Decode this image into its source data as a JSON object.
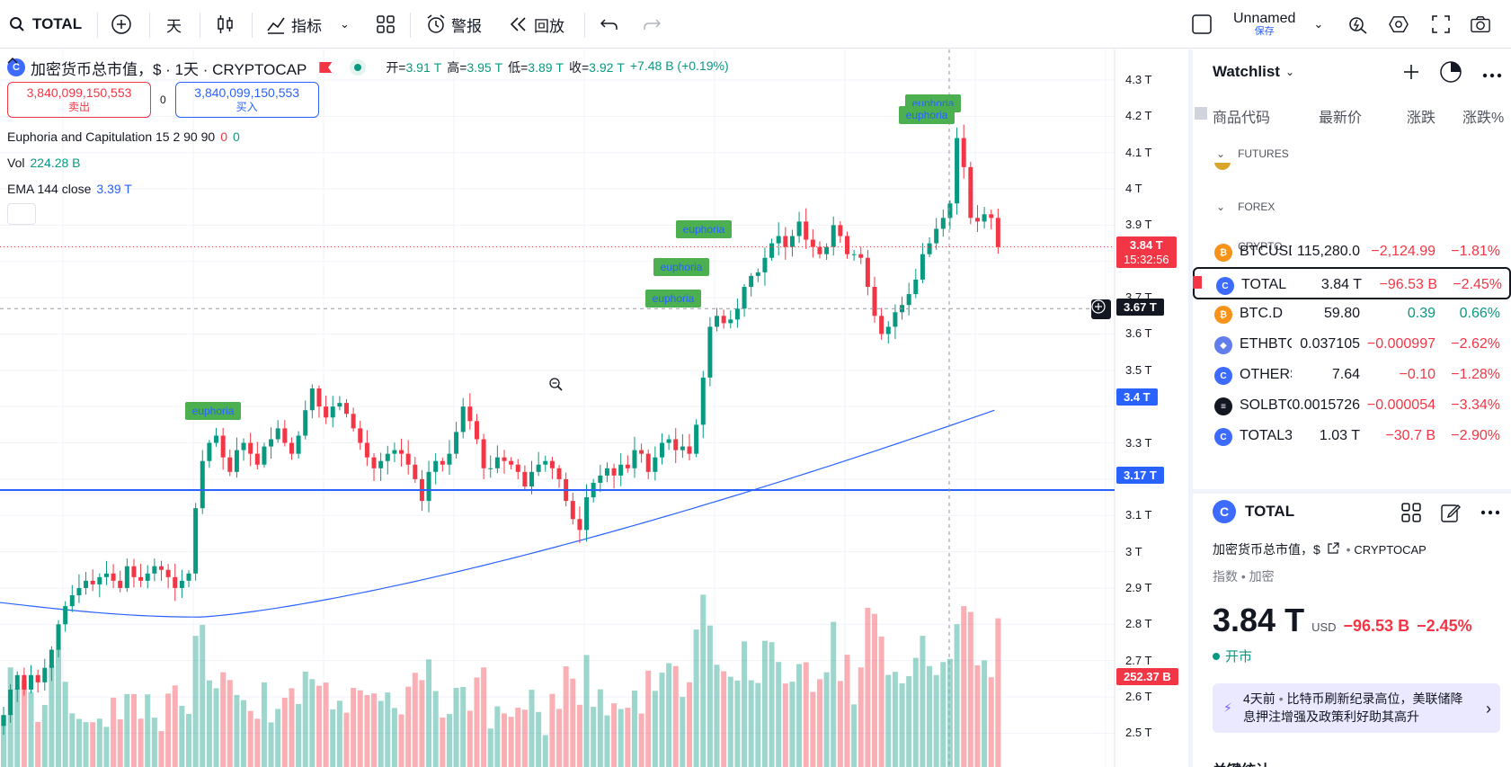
{
  "toolbar": {
    "symbol": "TOTAL",
    "interval": "天",
    "indicators_label": "指标",
    "alert_label": "警报",
    "replay_label": "回放",
    "layout_name": "Unnamed",
    "layout_saved": "保存"
  },
  "legend": {
    "title": "加密货币总市值，$ · 1天 · CRYPTOCAP",
    "open_label": "开=",
    "open": "3.91 T",
    "high_label": "高=",
    "high": "3.95 T",
    "low_label": "低=",
    "low": "3.89 T",
    "close_label": "收=",
    "close": "3.92 T",
    "change": "+7.48 B (+0.19%)",
    "sell_price": "3,840,099,150,553",
    "sell_label": "卖出",
    "spread": "0",
    "buy_price": "3,840,099,150,553",
    "buy_label": "买入",
    "ind1_name": "Euphoria and Capitulation 15 2 90 90",
    "ind1_v1": "0",
    "ind1_v2": "0",
    "vol_name": "Vol",
    "vol_value": "224.28 B",
    "ema_name": "EMA 144 close",
    "ema_value": "3.39 T"
  },
  "price_axis": {
    "labels": [
      "4.3 T",
      "4.2 T",
      "4.1 T",
      "4 T",
      "3.9 T",
      "3.7 T",
      "3.6 T",
      "3.5 T",
      "3.3 T",
      "3.2 T",
      "3.1 T",
      "3 T",
      "2.9 T",
      "2.8 T",
      "2.7 T",
      "2.6 T",
      "2.5 T"
    ],
    "last_price": "3.84 T",
    "countdown": "15:32:56",
    "crosshair_price": "3.67 T",
    "ema_price": "3.4 T",
    "hline_price": "3.17 T",
    "volume_last": "252.37 B"
  },
  "chart_labels": {
    "euphoria": "euphoria"
  },
  "colors": {
    "up": "#089981",
    "down": "#f23645",
    "accent": "#2962ff",
    "label_bg": "#4caf50"
  },
  "watchlist": {
    "title": "Watchlist",
    "col_symbol": "商品代码",
    "col_last": "最新价",
    "col_change": "涨跌",
    "col_pct": "涨跌%",
    "cat_futures": "FUTURES",
    "cat_forex": "FOREX",
    "cat_crypto": "CRYPTO",
    "rows": [
      {
        "symbol": "BTCUSD",
        "last": "115,280.0",
        "change": "−2,124.99",
        "pct": "−1.81%",
        "dir": "neg",
        "logo": "#f7931a",
        "glyph": "₿"
      },
      {
        "symbol": "TOTAL",
        "last": "3.84 T",
        "change": "−96.53 B",
        "pct": "−2.45%",
        "dir": "neg",
        "logo": "#3d6bff",
        "glyph": "C"
      },
      {
        "symbol": "BTC.D",
        "last": "59.80",
        "change": "0.39",
        "pct": "0.66%",
        "dir": "pos",
        "logo": "#f7931a",
        "glyph": "₿"
      },
      {
        "symbol": "ETHBTC",
        "last": "0.037105",
        "change": "−0.000997",
        "pct": "−2.62%",
        "dir": "neg",
        "logo": "#627eea",
        "glyph": "◆"
      },
      {
        "symbol": "OTHERS",
        "last": "7.64",
        "change": "−0.10",
        "pct": "−1.28%",
        "dir": "neg",
        "logo": "#3d6bff",
        "glyph": "C"
      },
      {
        "symbol": "SOLBTC",
        "last": "0.0015726",
        "change": "−0.000054",
        "pct": "−3.34%",
        "dir": "neg",
        "logo": "#131722",
        "glyph": "≡"
      },
      {
        "symbol": "TOTAL3",
        "last": "1.03 T",
        "change": "−30.7 B",
        "pct": "−2.90%",
        "dir": "neg",
        "logo": "#3d6bff",
        "glyph": "C"
      }
    ]
  },
  "detail": {
    "symbol": "TOTAL",
    "name": "加密货币总市值，$",
    "exchange": "CRYPTOCAP",
    "type": "指数 • 加密",
    "price": "3.84 T",
    "currency": "USD",
    "change": "−96.53 B",
    "pct": "−2.45%",
    "market_status": "开市",
    "news_time": "4天前",
    "news_text": "比特币刷新纪录高位，美联储降息押注增强及政策利好助其高升",
    "stats_title": "关键统计"
  },
  "chart_data": {
    "type": "candlestick",
    "timeframe": "1D",
    "closes_T": [
      2.55,
      2.62,
      2.66,
      2.62,
      2.66,
      2.64,
      2.68,
      2.73,
      2.8,
      2.85,
      2.88,
      2.9,
      2.92,
      2.91,
      2.93,
      2.94,
      2.92,
      2.9,
      2.96,
      2.93,
      2.92,
      2.94,
      2.96,
      2.95,
      2.93,
      2.9,
      2.92,
      2.94,
      3.12,
      3.25,
      3.3,
      3.32,
      3.26,
      3.22,
      3.28,
      3.3,
      3.27,
      3.24,
      3.29,
      3.31,
      3.34,
      3.3,
      3.27,
      3.32,
      3.39,
      3.45,
      3.4,
      3.37,
      3.4,
      3.41,
      3.38,
      3.34,
      3.3,
      3.26,
      3.23,
      3.25,
      3.27,
      3.28,
      3.27,
      3.24,
      3.2,
      3.14,
      3.22,
      3.25,
      3.24,
      3.27,
      3.33,
      3.4,
      3.36,
      3.31,
      3.23,
      3.23,
      3.26,
      3.25,
      3.24,
      3.22,
      3.18,
      3.22,
      3.24,
      3.25,
      3.23,
      3.2,
      3.14,
      3.09,
      3.06,
      3.15,
      3.19,
      3.21,
      3.23,
      3.21,
      3.24,
      3.23,
      3.28,
      3.27,
      3.22,
      3.26,
      3.3,
      3.31,
      3.28,
      3.29,
      3.27,
      3.35,
      3.48,
      3.62,
      3.65,
      3.63,
      3.64,
      3.67,
      3.73,
      3.76,
      3.77,
      3.81,
      3.85,
      3.87,
      3.84,
      3.87,
      3.91,
      3.86,
      3.84,
      3.82,
      3.84,
      3.9,
      3.87,
      3.82,
      3.82,
      3.81,
      3.73,
      3.65,
      3.6,
      3.62,
      3.66,
      3.68,
      3.71,
      3.75,
      3.82,
      3.85,
      3.89,
      3.92,
      3.96,
      4.14,
      4.06,
      3.92,
      3.91,
      3.93,
      3.92,
      3.84
    ],
    "ema144_T": {
      "start": 2.86,
      "end": 3.39
    },
    "hline_T": 3.17
  }
}
